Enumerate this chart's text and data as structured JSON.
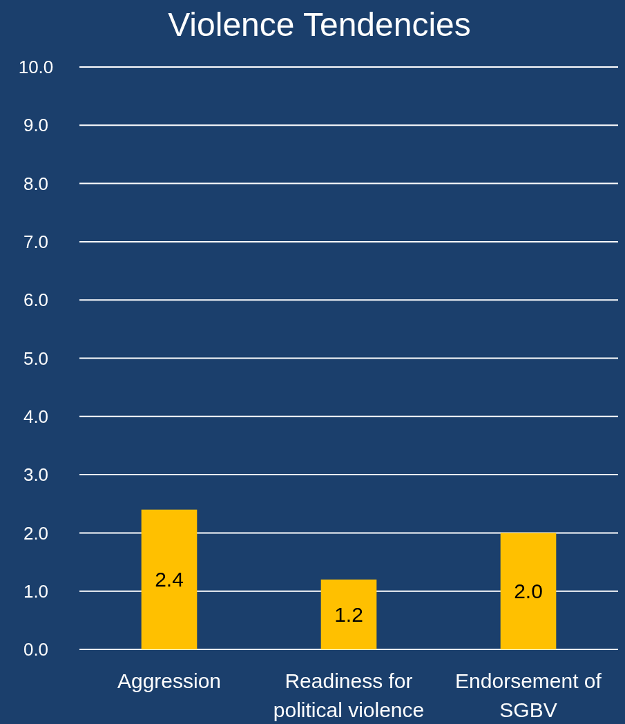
{
  "chart_data": {
    "type": "bar",
    "title": "Violence Tendencies",
    "categories": [
      "Aggression",
      "Readiness for political violence",
      "Endorsement of SGBV"
    ],
    "values": [
      2.4,
      1.2,
      2.0
    ],
    "value_labels": [
      "2.4",
      "1.2",
      "2.0"
    ],
    "color": "#ffc000",
    "ylim": [
      0,
      10
    ],
    "yticks": [
      {
        "value": 0,
        "label": "0.0"
      },
      {
        "value": 1,
        "label": "1.0"
      },
      {
        "value": 2,
        "label": "2.0"
      },
      {
        "value": 3,
        "label": "3.0"
      },
      {
        "value": 4,
        "label": "4.0"
      },
      {
        "value": 5,
        "label": "5.0"
      },
      {
        "value": 6,
        "label": "6.0"
      },
      {
        "value": 7,
        "label": "7.0"
      },
      {
        "value": 8,
        "label": "8.0"
      },
      {
        "value": 9,
        "label": "9.0"
      },
      {
        "value": 10,
        "label": "10.0"
      }
    ],
    "grid": "y"
  }
}
